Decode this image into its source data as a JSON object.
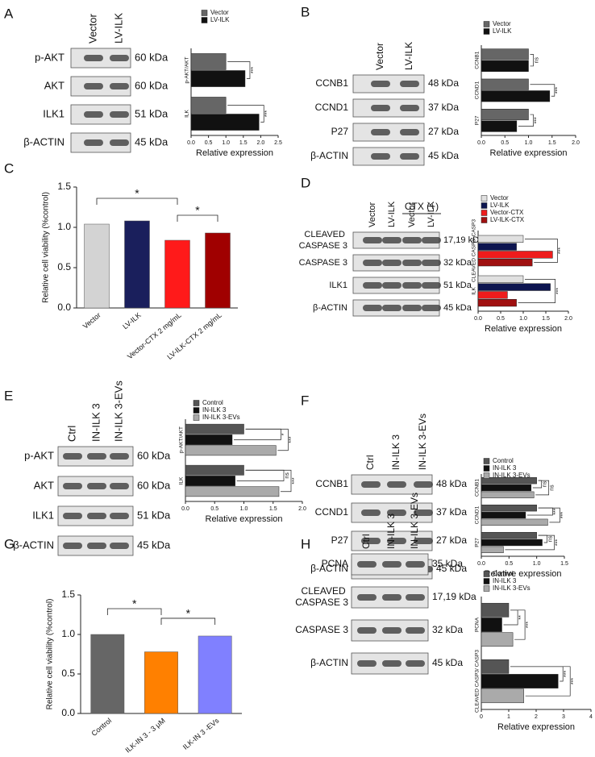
{
  "blots": [
    {
      "lanes": [
        "Vector",
        "LV-ILK"
      ],
      "rows": [
        {
          "label": "p-AKT",
          "size": "60 kDa"
        },
        {
          "label": "AKT",
          "size": "60 kDa"
        },
        {
          "label": "ILK1",
          "size": "51 kDa"
        },
        {
          "label": "β-ACTIN",
          "size": "45 kDa"
        }
      ]
    },
    {
      "lanes": [
        "Vector",
        "LV-ILK"
      ],
      "rows": [
        {
          "label": "CCNB1",
          "size": "48 kDa"
        },
        {
          "label": "CCND1",
          "size": "37 kDa"
        },
        {
          "label": "P27",
          "size": "27 kDa"
        },
        {
          "label": "β-ACTIN",
          "size": "45 kDa"
        }
      ]
    },
    {
      "lanes": [
        "Vector",
        "LV-ILK",
        "Vector",
        "LV-ILK"
      ],
      "group_label": "CTX (+)",
      "rows": [
        {
          "label": "CLEAVED CASPASE 3",
          "size": "17,19 kDa"
        },
        {
          "label": "CASPASE 3",
          "size": "32 kDa"
        },
        {
          "label": "ILK1",
          "size": "51 kDa"
        },
        {
          "label": "β-ACTIN",
          "size": "45 kDa"
        }
      ]
    },
    {
      "lanes": [
        "Ctrl",
        "IN-ILK 3",
        "IN-ILK 3-EVs"
      ],
      "rows": [
        {
          "label": "p-AKT",
          "size": "60 kDa"
        },
        {
          "label": "AKT",
          "size": "60 kDa"
        },
        {
          "label": "ILK1",
          "size": "51 kDa"
        },
        {
          "label": "β-ACTIN",
          "size": "45 kDa"
        }
      ]
    },
    {
      "lanes": [
        "Ctrl",
        "IN-ILK 3",
        "IN-ILK 3-EVs"
      ],
      "rows": [
        {
          "label": "CCNB1",
          "size": "48 kDa"
        },
        {
          "label": "CCND1",
          "size": "37 kDa"
        },
        {
          "label": "P27",
          "size": "27 kDa"
        },
        {
          "label": "β-ACTIN",
          "size": "45 kDa"
        }
      ]
    },
    {
      "lanes": [
        "Ctrl",
        "IN-ILK 3",
        "IN-ILK 3-EVs"
      ],
      "rows": [
        {
          "label": "PCNA",
          "size": "35 kDa"
        },
        {
          "label": "CLEAVED CASPASE 3",
          "size": "17,19 kDa"
        },
        {
          "label": "CASPASE 3",
          "size": "32 kDa"
        },
        {
          "label": "β-ACTIN",
          "size": "45 kDa"
        }
      ]
    }
  ],
  "chart_data": [
    {
      "label": "A",
      "type": "hbar",
      "categories": [
        "p-AKT/AKT",
        "ILK"
      ],
      "series": [
        {
          "name": "Vector",
          "color": "#666666",
          "values": [
            1.0,
            1.0
          ]
        },
        {
          "name": "LV-ILK",
          "color": "#111111",
          "values": [
            1.55,
            1.95
          ]
        }
      ],
      "significance": [
        [
          "***"
        ],
        [
          "***"
        ]
      ],
      "xlabel": "Relative expression",
      "xlim": [
        0,
        2.5
      ],
      "xticks": [
        {
          "value": 0,
          "label": "0.0"
        },
        0.5,
        {
          "value": 1,
          "label": "1.0"
        },
        1.5,
        {
          "value": 2,
          "label": "2.0"
        },
        2.5
      ]
    },
    {
      "label": "B",
      "type": "hbar",
      "categories": [
        "CCNB1",
        "CCND1",
        "P27"
      ],
      "series": [
        {
          "name": "Vector",
          "color": "#666666",
          "values": [
            1.0,
            1.0,
            1.0
          ]
        },
        {
          "name": "LV-ILK",
          "color": "#111111",
          "values": [
            1.0,
            1.45,
            0.75
          ]
        }
      ],
      "significance": [
        [
          "ns"
        ],
        [
          "***"
        ],
        [
          "***"
        ]
      ],
      "xlabel": "Relative expression",
      "xlim": [
        0,
        2
      ],
      "xticks": [
        {
          "value": 0,
          "label": "0.0"
        },
        0.5,
        {
          "value": 1,
          "label": "1.0"
        },
        1.5,
        {
          "value": 2,
          "label": "2.0"
        }
      ]
    },
    {
      "label": "C",
      "type": "bar",
      "categories": [
        "Vector",
        "LV-ILK",
        "Vector-CTX 2 mg/mL",
        "LV-ILK-CTX 2 mg/mL"
      ],
      "values": [
        1.04,
        1.08,
        0.84,
        0.93
      ],
      "colors": [
        "#d3d3d3",
        "#1a1f5c",
        "#ff1a1a",
        "#a00000"
      ],
      "significance": [
        "*",
        "*"
      ],
      "ylabel": "Relative cell viability (%control)",
      "ylim": [
        0,
        1.5
      ],
      "yticks": [
        {
          "value": 0,
          "label": "0.0"
        },
        0.5,
        {
          "value": 1,
          "label": "1.0"
        },
        1.5
      ]
    },
    {
      "label": "D",
      "type": "hbar",
      "categories": [
        "CLEAVED CASP3/ CASP3",
        "ILK"
      ],
      "series": [
        {
          "name": "Vector",
          "color": "#e0e0e0",
          "values": [
            1.0,
            1.0
          ]
        },
        {
          "name": "LV-ILK",
          "color": "#0d1550",
          "values": [
            0.85,
            1.6
          ]
        },
        {
          "name": "Vector-CTX",
          "color": "#ee1c1c",
          "values": [
            1.65,
            0.65
          ]
        },
        {
          "name": "LV-ILK-CTX",
          "color": "#a01010",
          "values": [
            1.2,
            0.85
          ]
        }
      ],
      "significance": [
        [
          "***"
        ],
        [
          "***"
        ]
      ],
      "xlabel": "Relative expression",
      "xlim": [
        0,
        2
      ],
      "xticks": [
        {
          "value": 0,
          "label": "0.0"
        },
        0.5,
        {
          "value": 1,
          "label": "1.0"
        },
        1.5,
        {
          "value": 2,
          "label": "2.0"
        }
      ]
    },
    {
      "label": "E",
      "type": "hbar",
      "categories": [
        "p-AKT/AKT",
        "ILK"
      ],
      "series": [
        {
          "name": "Control",
          "color": "#555555",
          "values": [
            1.0,
            1.0
          ]
        },
        {
          "name": "IN-ILK 3",
          "color": "#111111",
          "values": [
            0.8,
            0.85
          ]
        },
        {
          "name": "IN-ILK 3-EVs",
          "color": "#aaaaaa",
          "values": [
            1.55,
            1.6
          ]
        }
      ],
      "significance": [
        [
          "*",
          "***"
        ],
        [
          "ns",
          "***"
        ]
      ],
      "xlabel": "Relative expression",
      "xlim": [
        0,
        2
      ],
      "xticks": [
        {
          "value": 0,
          "label": "0.0"
        },
        0.5,
        {
          "value": 1,
          "label": "1.0"
        },
        1.5,
        {
          "value": 2,
          "label": "2.0"
        }
      ]
    },
    {
      "label": "F",
      "type": "hbar",
      "categories": [
        "CCNB1",
        "CCND1",
        "P27"
      ],
      "series": [
        {
          "name": "Control",
          "color": "#555555",
          "values": [
            1.0,
            1.0,
            1.0
          ]
        },
        {
          "name": "IN-ILK 3",
          "color": "#111111",
          "values": [
            0.9,
            0.8,
            1.1
          ]
        },
        {
          "name": "IN-ILK 3-EVs",
          "color": "#aaaaaa",
          "values": [
            0.95,
            1.2,
            0.4
          ]
        }
      ],
      "significance": [
        [
          "ns",
          "ns"
        ],
        [
          "***",
          "***"
        ],
        [
          "ns",
          "***"
        ]
      ],
      "xlabel": "Relative expression",
      "xlim": [
        0,
        1.5
      ],
      "xticks": [
        {
          "value": 0,
          "label": "0.0"
        },
        0.5,
        {
          "value": 1,
          "label": "1.0"
        },
        1.5
      ]
    },
    {
      "label": "G",
      "type": "bar",
      "categories": [
        "Control",
        "ILK-IN 3 - 3 μM",
        "ILK-IN 3 -EVs"
      ],
      "values": [
        1.0,
        0.78,
        0.98
      ],
      "colors": [
        "#666666",
        "#ff8000",
        "#8080ff"
      ],
      "significance": [
        "*",
        "*"
      ],
      "ylabel": "Relative cell viability (%control)",
      "ylim": [
        0,
        1.5
      ],
      "yticks": [
        {
          "value": 0,
          "label": "0.0"
        },
        0.5,
        {
          "value": 1,
          "label": "1.0"
        },
        1.5
      ]
    },
    {
      "label": "H",
      "type": "hbar",
      "categories": [
        "PCNA",
        "CLEAVED CASP3/ CASP3"
      ],
      "series": [
        {
          "name": "Control",
          "color": "#555555",
          "values": [
            1.0,
            1.0
          ]
        },
        {
          "name": "IN-ILK 3",
          "color": "#111111",
          "values": [
            0.75,
            2.8
          ]
        },
        {
          "name": "IN-ILK 3-EVs",
          "color": "#aaaaaa",
          "values": [
            1.15,
            1.55
          ]
        }
      ],
      "significance": [
        [
          "**",
          "***"
        ],
        [
          "***",
          "***"
        ]
      ],
      "xlabel": "Relative expression",
      "xlim": [
        0,
        4
      ],
      "xticks": [
        0,
        1,
        2,
        3,
        4
      ]
    }
  ]
}
